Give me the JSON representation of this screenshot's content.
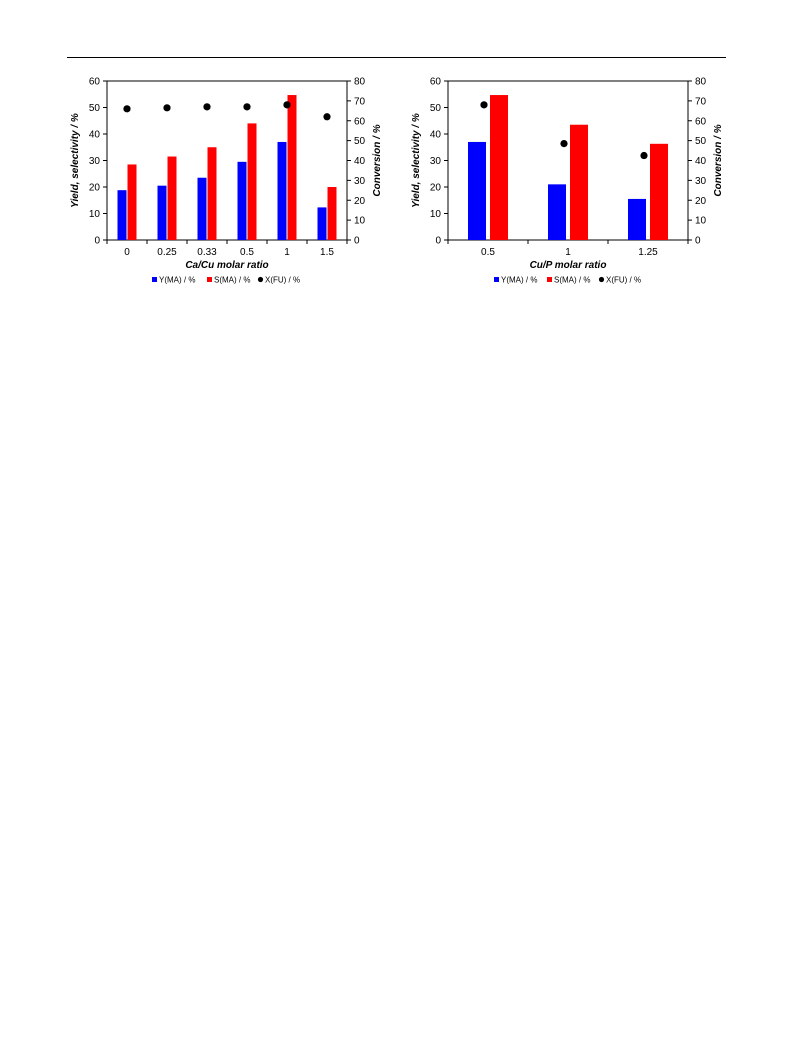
{
  "chart_data": [
    {
      "type": "bar",
      "xlabel": "Ca/Cu molar ratio",
      "ylabel": "Yield, selectivity / %",
      "y2label": "Conversion / %",
      "categories": [
        "0",
        "0.25",
        "0.33",
        "0.5",
        "1",
        "1.5"
      ],
      "ylim": [
        0,
        60
      ],
      "y2lim": [
        0,
        80
      ],
      "yticks": [
        "0",
        "10",
        "20",
        "30",
        "40",
        "50",
        "60"
      ],
      "y2ticks": [
        "0",
        "10",
        "20",
        "30",
        "40",
        "50",
        "60",
        "70",
        "80"
      ],
      "series": [
        {
          "name": "Y(MA) / %",
          "type": "bar",
          "axis": "left",
          "color": "#0000ff",
          "values": [
            18.8,
            20.5,
            23.5,
            29.5,
            37.0,
            12.3
          ]
        },
        {
          "name": "S(MA) / %",
          "type": "bar",
          "axis": "left",
          "color": "#ff0000",
          "values": [
            28.5,
            31.5,
            35.0,
            44.0,
            54.7,
            20.0
          ]
        },
        {
          "name": "X(FU) / %",
          "type": "scatter",
          "axis": "right",
          "color": "#000000",
          "values": [
            66,
            66.5,
            67,
            67,
            68,
            62
          ]
        }
      ],
      "legend_position": "bottom"
    },
    {
      "type": "bar",
      "xlabel": "Cu/P molar ratio",
      "ylabel": "Yield, selectivity / %",
      "y2label": "Conversion / %",
      "categories": [
        "0.5",
        "1",
        "1.25"
      ],
      "ylim": [
        0,
        60
      ],
      "y2lim": [
        0,
        80
      ],
      "yticks": [
        "0",
        "10",
        "20",
        "30",
        "40",
        "50",
        "60"
      ],
      "y2ticks": [
        "0",
        "10",
        "20",
        "30",
        "40",
        "50",
        "60",
        "70",
        "80"
      ],
      "series": [
        {
          "name": "Y(MA) / %",
          "type": "bar",
          "axis": "left",
          "color": "#0000ff",
          "values": [
            37.0,
            21.0,
            15.5
          ]
        },
        {
          "name": "S(MA) / %",
          "type": "bar",
          "axis": "left",
          "color": "#ff0000",
          "values": [
            54.7,
            43.5,
            36.3
          ]
        },
        {
          "name": "X(FU) / %",
          "type": "scatter",
          "axis": "right",
          "color": "#000000",
          "values": [
            68,
            48.5,
            42.5
          ]
        }
      ],
      "legend_position": "bottom"
    }
  ]
}
